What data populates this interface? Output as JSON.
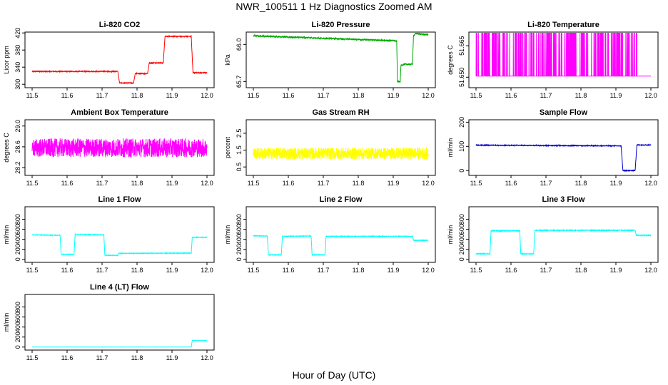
{
  "figure": {
    "title": "NWR_100511  1 Hz Diagnostics Zoomed AM",
    "xlabel": "Hour of Day (UTC)"
  },
  "chart_data": [
    {
      "type": "line",
      "title": "Li-820 CO2",
      "ylabel": "Licor ppm",
      "color": "#ff0000",
      "xlim": [
        11.5,
        12.0
      ],
      "ylim": [
        292,
        422
      ],
      "xticks": [
        "11.5",
        "11.6",
        "11.7",
        "11.8",
        "11.9",
        "12.0"
      ],
      "yticks": [
        300,
        340,
        380,
        420
      ],
      "series": [
        {
          "x": [
            11.5,
            11.745,
            11.75,
            11.79,
            11.795,
            11.83,
            11.835,
            11.875,
            11.88,
            11.955,
            11.96,
            12.0
          ],
          "y": [
            330,
            330,
            303,
            303,
            325,
            325,
            350,
            350,
            412,
            412,
            327,
            327
          ],
          "noise": 1
        }
      ]
    },
    {
      "type": "line",
      "title": "Li-820 Pressure",
      "ylabel": "kPa",
      "color": "#00aa00",
      "xlim": [
        11.5,
        12.0
      ],
      "ylim": [
        65.65,
        66.1
      ],
      "xticks": [
        "11.5",
        "11.6",
        "11.7",
        "11.8",
        "11.9",
        "12.0"
      ],
      "yticks": [
        "65.7",
        "66.0"
      ],
      "ytickvals": [
        65.7,
        66.0
      ],
      "series": [
        {
          "x": [
            11.5,
            11.7,
            11.9,
            11.91,
            11.912,
            11.92,
            11.922,
            11.935,
            11.955,
            11.958,
            11.965,
            11.99,
            12.0
          ],
          "y": [
            66.07,
            66.05,
            66.03,
            66.03,
            65.7,
            65.7,
            65.83,
            65.84,
            65.84,
            66.07,
            66.09,
            66.08,
            66.08
          ],
          "noise": 0.006
        }
      ]
    },
    {
      "type": "line",
      "title": "Li-820 Temperature",
      "ylabel": "degrees C",
      "color": "#ff00ff",
      "xlim": [
        11.5,
        12.0
      ],
      "ylim": [
        51.645,
        51.6715
      ],
      "xticks": [
        "11.5",
        "11.6",
        "11.7",
        "11.8",
        "11.9",
        "12.0"
      ],
      "yticks": [
        "51.650",
        "51.665"
      ],
      "ytickvals": [
        51.65,
        51.665
      ],
      "series": [
        {
          "x": [
            11.5,
            12.0
          ],
          "y": [
            51.6505,
            51.6505
          ],
          "spikes_to": 51.6715,
          "spikes_range": [
            11.5,
            11.96
          ]
        }
      ]
    },
    {
      "type": "line",
      "title": "Ambient Box Temperature",
      "ylabel": "degrees C",
      "color": "#ff00ff",
      "xlim": [
        11.5,
        12.0
      ],
      "ylim": [
        28.05,
        29.12
      ],
      "xticks": [
        "11.5",
        "11.6",
        "11.7",
        "11.8",
        "11.9",
        "12.0"
      ],
      "yticks": [
        "28.2",
        "28.6",
        "29.0"
      ],
      "ytickvals": [
        28.2,
        28.6,
        29.0
      ],
      "series": [
        {
          "x": [
            11.5,
            12.0
          ],
          "y": [
            28.58,
            28.58
          ],
          "noise": 0.18
        }
      ]
    },
    {
      "type": "line",
      "title": "Gas Stream RH",
      "ylabel": "percent",
      "color": "#ffff00",
      "xlim": [
        11.5,
        12.0
      ],
      "ylim": [
        0.0,
        3.3
      ],
      "xticks": [
        "11.5",
        "11.6",
        "11.7",
        "11.8",
        "11.9",
        "12.0"
      ],
      "yticks": [
        "0.5",
        "1.5",
        "2.5"
      ],
      "ytickvals": [
        0.5,
        1.5,
        2.5
      ],
      "series": [
        {
          "x": [
            11.5,
            12.0
          ],
          "y": [
            1.3,
            1.3
          ],
          "noise": 0.35
        }
      ]
    },
    {
      "type": "line",
      "title": "Sample Flow",
      "ylabel": "ml/min",
      "color": "#0000cc",
      "xlim": [
        11.5,
        12.0
      ],
      "ylim": [
        -20,
        210
      ],
      "xticks": [
        "11.5",
        "11.6",
        "11.7",
        "11.8",
        "11.9",
        "12.0"
      ],
      "yticks": [
        0,
        100,
        200
      ],
      "series": [
        {
          "x": [
            11.5,
            11.915,
            11.92,
            11.955,
            11.96,
            12.0
          ],
          "y": [
            105,
            102,
            0,
            0,
            106,
            106
          ],
          "noise": 1.5
        }
      ]
    },
    {
      "type": "line",
      "title": "Line 1 Flow",
      "ylabel": "ml/min",
      "color": "#00ffff",
      "xlim": [
        11.5,
        12.0
      ],
      "ylim": [
        -60,
        1050
      ],
      "xticks": [
        "11.5",
        "11.6",
        "11.7",
        "11.8",
        "11.9",
        "12.0"
      ],
      "yticks": [
        0,
        200,
        400,
        600,
        800
      ],
      "series": [
        {
          "x": [
            11.5,
            11.58,
            11.583,
            11.62,
            11.623,
            11.705,
            11.708,
            11.745,
            11.748,
            11.955,
            11.958,
            12.0
          ],
          "y": [
            490,
            480,
            100,
            100,
            500,
            490,
            80,
            80,
            120,
            125,
            440,
            440
          ],
          "noise": 6
        }
      ]
    },
    {
      "type": "line",
      "title": "Line 2 Flow",
      "ylabel": "ml/min",
      "color": "#00ffff",
      "xlim": [
        11.5,
        12.0
      ],
      "ylim": [
        -60,
        1050
      ],
      "xticks": [
        "11.5",
        "11.6",
        "11.7",
        "11.8",
        "11.9",
        "12.0"
      ],
      "yticks": [
        0,
        200,
        400,
        600,
        800
      ],
      "series": [
        {
          "x": [
            11.5,
            11.54,
            11.543,
            11.58,
            11.583,
            11.665,
            11.668,
            11.705,
            11.708,
            11.955,
            11.958,
            12.0
          ],
          "y": [
            470,
            465,
            90,
            90,
            460,
            465,
            90,
            90,
            460,
            460,
            380,
            380
          ],
          "noise": 6
        }
      ]
    },
    {
      "type": "line",
      "title": "Line 3 Flow",
      "ylabel": "ml/min",
      "color": "#00ffff",
      "xlim": [
        11.5,
        12.0
      ],
      "ylim": [
        -60,
        1050
      ],
      "xticks": [
        "11.5",
        "11.6",
        "11.7",
        "11.8",
        "11.9",
        "12.0"
      ],
      "yticks": [
        0,
        200,
        400,
        600,
        800
      ],
      "series": [
        {
          "x": [
            11.5,
            11.54,
            11.543,
            11.625,
            11.628,
            11.665,
            11.668,
            11.955,
            11.958,
            12.0
          ],
          "y": [
            110,
            110,
            570,
            570,
            110,
            110,
            580,
            580,
            480,
            480
          ],
          "noise": 8
        }
      ]
    },
    {
      "type": "line",
      "title": "Line 4 (LT) Flow",
      "ylabel": "ml/min",
      "color": "#00ffff",
      "xlim": [
        11.5,
        12.0
      ],
      "ylim": [
        -60,
        1050
      ],
      "xticks": [
        "11.5",
        "11.6",
        "11.7",
        "11.8",
        "11.9",
        "12.0"
      ],
      "yticks": [
        0,
        200,
        400,
        600,
        800
      ],
      "series": [
        {
          "x": [
            11.5,
            11.955,
            11.958,
            12.0
          ],
          "y": [
            0,
            0,
            130,
            130
          ],
          "noise": 1
        }
      ]
    }
  ]
}
